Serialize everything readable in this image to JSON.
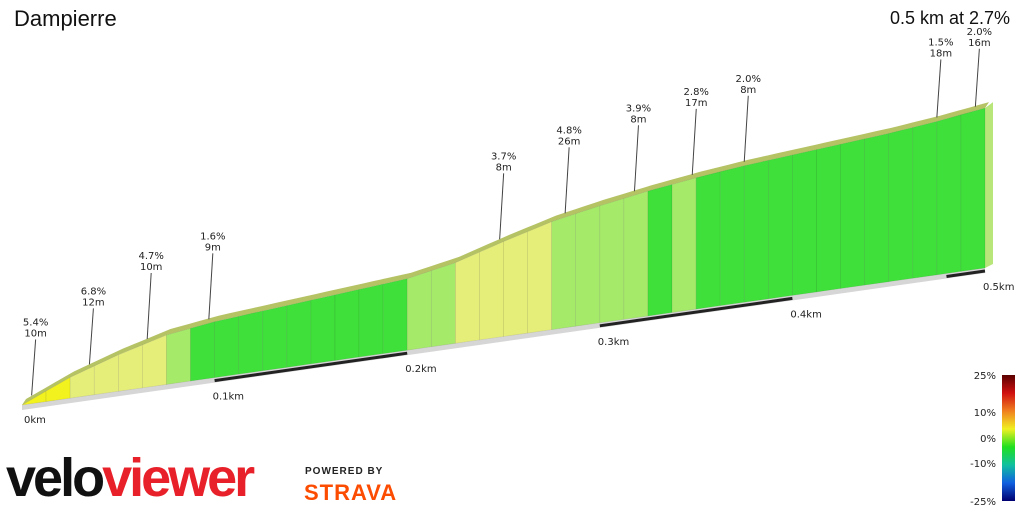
{
  "title": "Dampierre",
  "summary": "0.5 km at 2.7%",
  "brand": {
    "logo_part1": "velo",
    "logo_part2": "viewer",
    "powered_by": "POWERED BY",
    "partner": "STRAVA"
  },
  "chart_data": {
    "type": "area",
    "title": "Dampierre",
    "xlabel": "",
    "ylabel": "",
    "x_unit": "km",
    "distance_km": [
      0,
      0.025,
      0.05,
      0.075,
      0.1,
      0.125,
      0.15,
      0.175,
      0.2,
      0.225,
      0.25,
      0.275,
      0.3,
      0.325,
      0.35,
      0.375,
      0.4,
      0.425,
      0.45,
      0.475,
      0.5
    ],
    "elevation_m": [
      0,
      1.6,
      2.8,
      3.8,
      4.3,
      4.6,
      4.9,
      5.2,
      5.5,
      6.2,
      7.3,
      8.3,
      9.0,
      9.6,
      10.1,
      10.5,
      10.8,
      11.1,
      11.4,
      11.8,
      12.3
    ],
    "x_ticks": [
      "0km",
      "0.1km",
      "0.2km",
      "0.3km",
      "0.4km",
      "0.5km"
    ],
    "x_tick_values": [
      0,
      0.1,
      0.2,
      0.3,
      0.4,
      0.5
    ],
    "annotations": [
      {
        "km": 0.005,
        "grade": "5.4%",
        "length": "10m"
      },
      {
        "km": 0.035,
        "grade": "6.8%",
        "length": "12m"
      },
      {
        "km": 0.065,
        "grade": "4.7%",
        "length": "10m"
      },
      {
        "km": 0.097,
        "grade": "1.6%",
        "length": "9m"
      },
      {
        "km": 0.248,
        "grade": "3.7%",
        "length": "8m"
      },
      {
        "km": 0.282,
        "grade": "4.8%",
        "length": "26m"
      },
      {
        "km": 0.318,
        "grade": "3.9%",
        "length": "8m"
      },
      {
        "km": 0.348,
        "grade": "2.8%",
        "length": "17m"
      },
      {
        "km": 0.375,
        "grade": "2.0%",
        "length": "8m"
      },
      {
        "km": 0.475,
        "grade": "1.5%",
        "length": "18m"
      },
      {
        "km": 0.495,
        "grade": "2.0%",
        "length": "16m"
      }
    ],
    "legend": {
      "ticks": [
        "25%",
        "10%",
        "0%",
        "-10%",
        "-25%"
      ],
      "tick_values": [
        25,
        10,
        0,
        -10,
        -25
      ],
      "colors": [
        "#5a0000",
        "#d01010",
        "#f08020",
        "#f0f020",
        "#20e020",
        "#10c0a0",
        "#1060e0",
        "#000070"
      ]
    },
    "grade_colors": {
      "steep": "#f2f21e",
      "moderate": "#e6ee7a",
      "gentle": "#a6ea6a",
      "flat": "#3fe03a"
    }
  }
}
